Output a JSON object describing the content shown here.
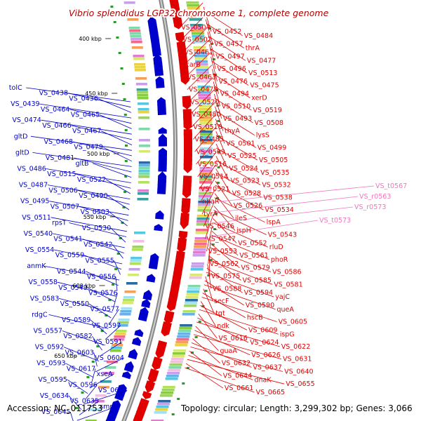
{
  "title": "Vibrio splendidus LGP32 chromosome 1, complete genome",
  "footer": {
    "accession": "Accession: NC_011753",
    "stats": "Topology: circular; Length: 3,299,302 bp; Genes: 3,066"
  },
  "colors": {
    "forward": "#e00000",
    "reverse": "#0000cc",
    "rna": "#ee77bb",
    "backbone": "#888888",
    "rnaTick": "#2a9a2a"
  },
  "kbp_labels": [
    "400 kbp",
    "450 kbp",
    "500 kbp",
    "550 kbp",
    "600 kbp",
    "650 kbp"
  ],
  "left_labels": [
    "tolC",
    "VS_0438",
    "VS_0436",
    "VS_0439",
    "VS_0464",
    "VS_0465",
    "VS_0474",
    "VS_0466",
    "VS_0467",
    "gltD",
    "VS_0468",
    "VS_0479",
    "gltD",
    "VS_0481",
    "gltB",
    "VS_0486",
    "VS_0515",
    "VS_0522",
    "VS_0487",
    "VS_0506",
    "VS_0490",
    "VS_0495",
    "VS_0507",
    "VS_0503",
    "VS_0511",
    "rpsT",
    "VS_0530",
    "VS_0540",
    "VS_0541",
    "VS_0542",
    "VS_0554",
    "VS_0559",
    "VS_0555",
    "anmK",
    "VS_0544",
    "VS_0556",
    "VS_0558",
    "VS_0549",
    "VS_0576",
    "VS_0583",
    "VS_0550",
    "VS_0577",
    "rdgC",
    "VS_0589",
    "VS_0597",
    "VS_0557",
    "VS_0582",
    "VS_0591",
    "VS_0592",
    "VS_0603",
    "VS_0604",
    "VS_0593",
    "VS_0617",
    "xseA",
    "VS_0595",
    "VS_0596",
    "VS_0633",
    "VS_0634",
    "VS_0635",
    "smpB",
    "VS_0645"
  ],
  "right_labels": [
    "VS_0504",
    "VS_0452",
    "VS_0484",
    "VS_0502",
    "VS_0457",
    "thrA",
    "VS_0461",
    "VS_0497",
    "VS_0477",
    "carB",
    "VS_0496",
    "VS_0513",
    "VS_0463",
    "VS_0476",
    "VS_0475",
    "VS_0478",
    "VS_0494",
    "xerD",
    "VS_0520",
    "VS_0510",
    "VS_0519",
    "VS_0480",
    "VS_0493",
    "VS_0508",
    "VS_0518",
    "thyA",
    "lysS",
    "VS_0485",
    "VS_0501",
    "VS_0499",
    "VS_0509",
    "VS_0525",
    "VS_0505",
    "VS_0516",
    "VS_0524",
    "VS_0535",
    "VS_0514",
    "VS_0523",
    "VS_0532",
    "VS_0521",
    "VS_0528",
    "VS_0538",
    "nhaR",
    "VS_0526",
    "VS_0534",
    "tyrA",
    "ileS",
    "lspA",
    "VS_0546",
    "ispH",
    "VS_0543",
    "VS_0547",
    "VS_0552",
    "rluD",
    "VS_0553",
    "VS_0561",
    "phoR",
    "VS_0562",
    "VS_0579",
    "VS_0586",
    "VS_0575",
    "VS_0585",
    "VS_0581",
    "VS_0588",
    "VS_0594",
    "yajC",
    "secF",
    "VS_0590",
    "queA",
    "tgt",
    "hscB",
    "VS_0605",
    "ndk",
    "VS_0609",
    "ispG",
    "VS_0616",
    "VS_0624",
    "VS_0622",
    "guaA",
    "VS_0626",
    "VS_0631",
    "VS_0632",
    "VS_0637",
    "VS_0640",
    "VS_0644",
    "dnaK",
    "VS_0655",
    "VS_0661",
    "VS_0665"
  ],
  "rna_labels": [
    "VS_t0567",
    "VS_r0563",
    "VS_r0573",
    "VS_t0573"
  ]
}
